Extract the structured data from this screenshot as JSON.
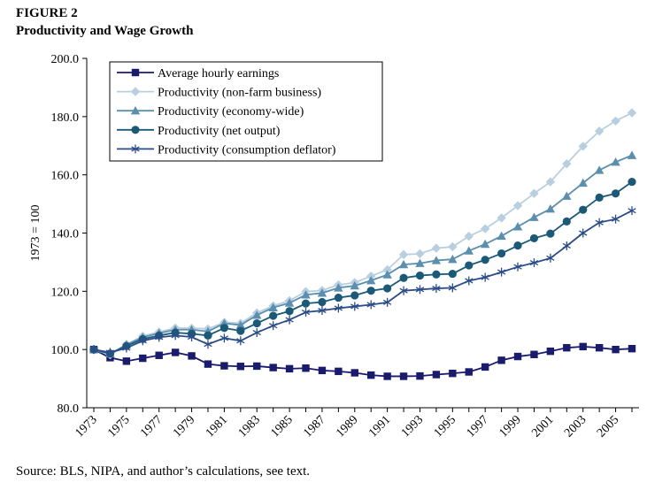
{
  "figure": {
    "label": "FIGURE 2",
    "title": "Productivity and Wage Growth",
    "source": "Source: BLS, NIPA, and author’s calculations, see text."
  },
  "chart_data": {
    "type": "line",
    "ylabel": "1973 = 100",
    "ylim": [
      80,
      200
    ],
    "yticks": [
      80,
      100,
      120,
      140,
      160,
      180,
      200
    ],
    "ytick_labels": [
      "80.0",
      "100.0",
      "120.0",
      "140.0",
      "160.0",
      "180.0",
      "200.0"
    ],
    "xlim": [
      1973,
      2006
    ],
    "xticks": [
      1973,
      1975,
      1977,
      1979,
      1981,
      1983,
      1985,
      1987,
      1989,
      1991,
      1993,
      1995,
      1997,
      1999,
      2001,
      2003,
      2005
    ],
    "xtick_labels": [
      "1973",
      "1975",
      "1977",
      "1979",
      "1981",
      "1983",
      "1985",
      "1987",
      "1989",
      "1991",
      "1993",
      "1995",
      "1997",
      "1999",
      "2001",
      "2003",
      "2005"
    ],
    "grid": false,
    "legend_position": "top-left",
    "x": [
      1973,
      1974,
      1975,
      1976,
      1977,
      1978,
      1979,
      1980,
      1981,
      1982,
      1983,
      1984,
      1985,
      1986,
      1987,
      1988,
      1989,
      1990,
      1991,
      1992,
      1993,
      1994,
      1995,
      1996,
      1997,
      1998,
      1999,
      2000,
      2001,
      2002,
      2003,
      2004,
      2005,
      2006
    ],
    "series": [
      {
        "name": "Average hourly earnings",
        "color": "#1a1a6e",
        "marker": "square",
        "values": [
          100.0,
          97.2,
          96.0,
          97.0,
          98.0,
          99.0,
          97.8,
          95.0,
          94.4,
          94.2,
          94.3,
          93.8,
          93.4,
          93.6,
          92.8,
          92.5,
          92.0,
          91.2,
          90.8,
          90.8,
          90.9,
          91.4,
          91.8,
          92.3,
          94.0,
          96.3,
          97.6,
          98.3,
          99.4,
          100.6,
          101.0,
          100.6,
          100.0,
          100.3
        ]
      },
      {
        "name": "Productivity (non-farm business)",
        "color": "#b8cfe0",
        "marker": "diamond",
        "values": [
          100.0,
          98.2,
          101.8,
          104.6,
          106.0,
          107.4,
          107.3,
          107.1,
          109.3,
          109.0,
          112.6,
          115.0,
          116.8,
          119.9,
          120.3,
          122.2,
          123.0,
          125.2,
          127.4,
          132.6,
          132.9,
          134.8,
          135.3,
          138.9,
          141.5,
          145.2,
          149.4,
          153.6,
          157.6,
          163.8,
          169.8,
          175.0,
          178.5,
          181.3
        ]
      },
      {
        "name": "Productivity (economy-wide)",
        "color": "#5b8fb0",
        "marker": "triangle",
        "values": [
          100.0,
          98.6,
          101.6,
          104.2,
          105.6,
          106.8,
          106.8,
          106.2,
          109.0,
          108.4,
          111.8,
          114.4,
          116.0,
          118.8,
          119.4,
          121.2,
          121.9,
          123.7,
          125.7,
          129.2,
          129.6,
          130.6,
          131.0,
          133.9,
          136.2,
          139.0,
          142.2,
          145.4,
          148.3,
          152.7,
          157.2,
          161.6,
          164.4,
          166.7
        ]
      },
      {
        "name": "Productivity (net output)",
        "color": "#1a5a78",
        "marker": "circle",
        "values": [
          100.0,
          98.6,
          101.2,
          103.6,
          104.8,
          105.8,
          105.4,
          104.8,
          107.4,
          106.4,
          109.0,
          111.6,
          113.2,
          115.8,
          116.3,
          117.8,
          118.6,
          120.2,
          121.0,
          124.6,
          125.4,
          125.8,
          126.0,
          128.9,
          130.8,
          133.0,
          135.7,
          138.2,
          139.8,
          144.0,
          148.0,
          152.2,
          153.6,
          157.6
        ]
      },
      {
        "name": "Productivity (consumption deflator)",
        "color": "#2b4c8a",
        "marker": "star",
        "values": [
          100.0,
          99.0,
          100.5,
          103.0,
          104.2,
          104.8,
          104.3,
          101.8,
          103.9,
          103.0,
          105.8,
          108.2,
          110.2,
          112.8,
          113.4,
          114.2,
          114.8,
          115.4,
          116.2,
          120.2,
          120.6,
          121.0,
          121.2,
          123.6,
          124.8,
          126.6,
          128.4,
          129.8,
          131.4,
          135.6,
          140.0,
          143.6,
          144.8,
          147.7
        ]
      }
    ]
  }
}
